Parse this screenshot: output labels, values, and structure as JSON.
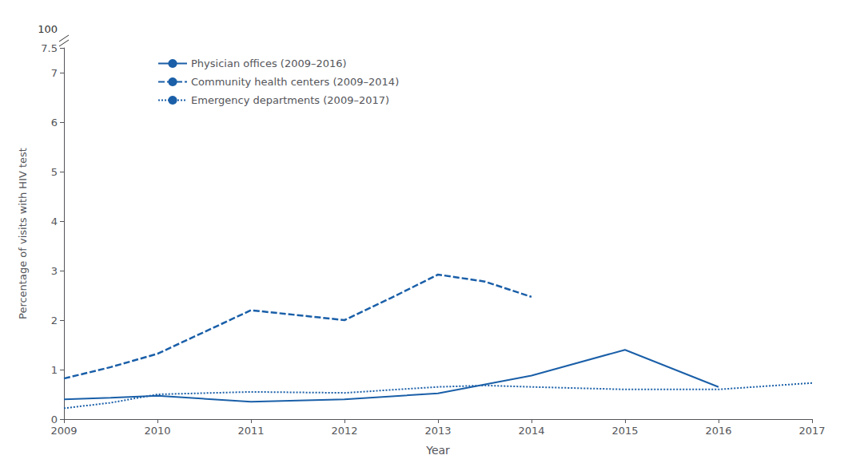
{
  "chart_data": {
    "type": "line",
    "x_label": "Year",
    "y_label": "Percentage of visits with HIV test",
    "xlim": [
      2009,
      2017
    ],
    "xticks": [
      2009,
      2010,
      2011,
      2012,
      2013,
      2014,
      2015,
      2016,
      2017
    ],
    "ylim": [
      0,
      7.5
    ],
    "yticks": [
      0,
      1,
      2,
      3,
      4,
      5,
      6,
      7
    ],
    "grid": false,
    "legend": "upper left",
    "annotations": [
      "100"
    ],
    "series": [
      {
        "name": "Physician offices (2009–2016)",
        "color": "#1a5fa8",
        "line_style": "solid",
        "x": [
          2009,
          2009.5,
          2010,
          2011,
          2012,
          2013,
          2014,
          2015,
          2016
        ],
        "values": [
          0.4,
          0.43,
          0.47,
          0.35,
          0.4,
          0.52,
          0.88,
          1.4,
          0.65
        ]
      },
      {
        "name": "Community health centers (2009–2014)",
        "color": "#1a5fa8",
        "line_style": "dashed",
        "x": [
          2009,
          2009.5,
          2010,
          2011,
          2012,
          2012.5,
          2013,
          2013.5,
          2014
        ],
        "values": [
          0.82,
          1.05,
          1.32,
          2.2,
          2.0,
          2.45,
          2.92,
          2.78,
          2.47
        ]
      },
      {
        "name": "Emergency departments (2009–2017)",
        "color": "#1a5fa8",
        "line_style": "dotted",
        "x": [
          2009,
          2009.5,
          2010,
          2011,
          2012,
          2013,
          2013.5,
          2014,
          2015,
          2016,
          2017
        ],
        "values": [
          0.22,
          0.33,
          0.5,
          0.55,
          0.53,
          0.65,
          0.68,
          0.65,
          0.6,
          0.6,
          0.73
        ]
      }
    ]
  }
}
